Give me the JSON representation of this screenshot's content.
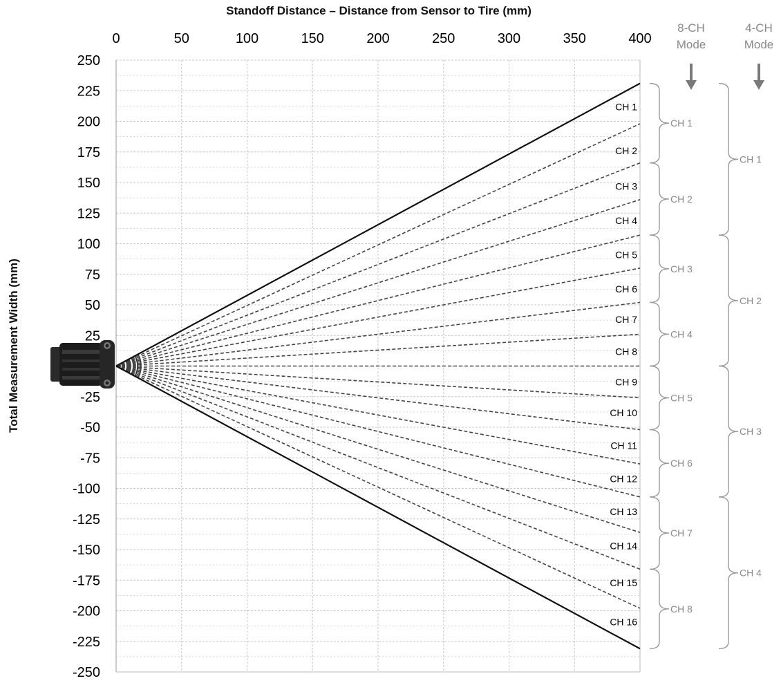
{
  "chart_data": {
    "type": "line",
    "title": "",
    "xlabel": "Standoff Distance – Distance from Sensor to Tire (mm)",
    "ylabel": "Total Measurement Width (mm)",
    "xlim": [
      0,
      400
    ],
    "ylim": [
      -250,
      250
    ],
    "x_ticks": [
      0,
      50,
      100,
      150,
      200,
      250,
      300,
      350,
      400
    ],
    "y_ticks": [
      250,
      225,
      200,
      175,
      150,
      125,
      100,
      75,
      50,
      25,
      0,
      -25,
      -50,
      -75,
      -100,
      -125,
      -150,
      -175,
      -200,
      -225,
      -250
    ],
    "x_tick_labels": [
      "0",
      "50",
      "100",
      "150",
      "200",
      "250",
      "300",
      "350",
      "400"
    ],
    "y_tick_labels": [
      "250",
      "225",
      "200",
      "175",
      "150",
      "125",
      "100",
      "75",
      "50",
      "25",
      "",
      "-25",
      "-50",
      "-75",
      "-100",
      "-125",
      "-150",
      "-175",
      "-200",
      "-225",
      "-250"
    ],
    "x_axis_position": "top",
    "grid": true,
    "boundary_lines": [
      {
        "x": [
          0,
          400
        ],
        "y": [
          0,
          231
        ],
        "style": "solid"
      },
      {
        "x": [
          0,
          400
        ],
        "y": [
          0,
          -231
        ],
        "style": "solid"
      }
    ],
    "channel_dividers": [
      {
        "x": [
          0,
          400
        ],
        "y": [
          0,
          198
        ],
        "style": "dashed"
      },
      {
        "x": [
          0,
          400
        ],
        "y": [
          0,
          166
        ],
        "style": "dashed"
      },
      {
        "x": [
          0,
          400
        ],
        "y": [
          0,
          136
        ],
        "style": "dashed"
      },
      {
        "x": [
          0,
          400
        ],
        "y": [
          0,
          107
        ],
        "style": "dashed"
      },
      {
        "x": [
          0,
          400
        ],
        "y": [
          0,
          80
        ],
        "style": "dashed"
      },
      {
        "x": [
          0,
          400
        ],
        "y": [
          0,
          52
        ],
        "style": "dashed"
      },
      {
        "x": [
          0,
          400
        ],
        "y": [
          0,
          26
        ],
        "style": "dashed"
      },
      {
        "x": [
          0,
          400
        ],
        "y": [
          0,
          0
        ],
        "style": "dashed"
      },
      {
        "x": [
          0,
          400
        ],
        "y": [
          0,
          -26
        ],
        "style": "dashed"
      },
      {
        "x": [
          0,
          400
        ],
        "y": [
          0,
          -52
        ],
        "style": "dashed"
      },
      {
        "x": [
          0,
          400
        ],
        "y": [
          0,
          -80
        ],
        "style": "dashed"
      },
      {
        "x": [
          0,
          400
        ],
        "y": [
          0,
          -107
        ],
        "style": "dashed"
      },
      {
        "x": [
          0,
          400
        ],
        "y": [
          0,
          -136
        ],
        "style": "dashed"
      },
      {
        "x": [
          0,
          400
        ],
        "y": [
          0,
          -166
        ],
        "style": "dashed"
      },
      {
        "x": [
          0,
          400
        ],
        "y": [
          0,
          -198
        ],
        "style": "dashed"
      }
    ],
    "channel_labels": [
      {
        "text": "CH 1",
        "y": 212
      },
      {
        "text": "CH 2",
        "y": 176
      },
      {
        "text": "CH 3",
        "y": 147
      },
      {
        "text": "CH 4",
        "y": 119
      },
      {
        "text": "CH 5",
        "y": 91
      },
      {
        "text": "CH 6",
        "y": 63
      },
      {
        "text": "CH 7",
        "y": 38
      },
      {
        "text": "CH 8",
        "y": 12
      },
      {
        "text": "CH 9",
        "y": -13
      },
      {
        "text": "CH 10",
        "y": -38
      },
      {
        "text": "CH 11",
        "y": -65
      },
      {
        "text": "CH 12",
        "y": -92
      },
      {
        "text": "CH 13",
        "y": -119
      },
      {
        "text": "CH 14",
        "y": -147
      },
      {
        "text": "CH 15",
        "y": -177
      },
      {
        "text": "CH 16",
        "y": -209
      }
    ],
    "mode_8ch": {
      "header": [
        "8-CH",
        "Mode"
      ],
      "groups": [
        {
          "label": "CH 1",
          "y_top": 231,
          "y_bottom": 166
        },
        {
          "label": "CH 2",
          "y_top": 166,
          "y_bottom": 107
        },
        {
          "label": "CH 3",
          "y_top": 107,
          "y_bottom": 52
        },
        {
          "label": "CH 4",
          "y_top": 52,
          "y_bottom": 0
        },
        {
          "label": "CH 5",
          "y_top": 0,
          "y_bottom": -52
        },
        {
          "label": "CH 6",
          "y_top": -52,
          "y_bottom": -107
        },
        {
          "label": "CH 7",
          "y_top": -107,
          "y_bottom": -166
        },
        {
          "label": "CH 8",
          "y_top": -166,
          "y_bottom": -231
        }
      ]
    },
    "mode_4ch": {
      "header": [
        "4-CH",
        "Mode"
      ],
      "groups": [
        {
          "label": "CH 1",
          "y_top": 231,
          "y_bottom": 107
        },
        {
          "label": "CH 2",
          "y_top": 107,
          "y_bottom": 0
        },
        {
          "label": "CH 3",
          "y_top": 0,
          "y_bottom": -107
        },
        {
          "label": "CH 4",
          "y_top": -107,
          "y_bottom": -231
        }
      ]
    },
    "colors": {
      "lines": "#111111",
      "dashed": "#444444",
      "grid": "#c8c8c8",
      "brackets": "#9a9a9a",
      "arrow": "#7a7a7a"
    }
  }
}
